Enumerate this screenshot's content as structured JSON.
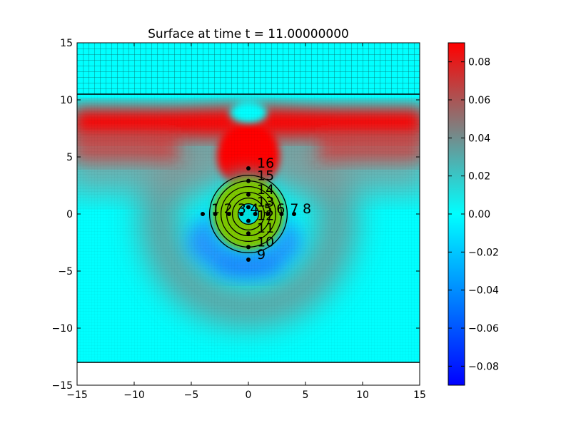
{
  "chart_data": {
    "type": "heatmap",
    "title": "Surface at time t =     11.00000000",
    "xlabel": "",
    "ylabel": "",
    "xlim": [
      -15,
      15
    ],
    "ylim": [
      -15,
      15
    ],
    "xticks": [
      "−15",
      "−10",
      "−5",
      "0",
      "5",
      "10",
      "15"
    ],
    "yticks": [
      "−15",
      "−10",
      "−5",
      "0",
      "5",
      "10",
      "15"
    ],
    "colorbar": {
      "range": [
        -0.09,
        0.09
      ],
      "ticks": [
        0.08,
        0.06,
        0.04,
        0.02,
        0.0,
        -0.02,
        -0.04,
        -0.06,
        -0.08
      ],
      "tick_labels": [
        "0.08",
        "0.06",
        "0.04",
        "0.02",
        "0.00",
        "−0.02",
        "−0.04",
        "−0.06",
        "−0.08"
      ],
      "colors": [
        "#0000ff",
        "#00ffff",
        "#ff0000"
      ]
    },
    "domain": {
      "y_top": 10.5,
      "y_bottom": -13
    },
    "coarse_region": {
      "y_from": 10.5,
      "y_to": 15
    },
    "gauges": [
      {
        "id": "1",
        "x": -4.0,
        "y": 0.0
      },
      {
        "id": "2",
        "x": -2.9,
        "y": 0.0
      },
      {
        "id": "3",
        "x": -1.7,
        "y": 0.0
      },
      {
        "id": "4",
        "x": -0.6,
        "y": 0.0
      },
      {
        "id": "5",
        "x": 0.6,
        "y": 0.0
      },
      {
        "id": "6",
        "x": 1.7,
        "y": 0.0
      },
      {
        "id": "7",
        "x": 2.9,
        "y": 0.0
      },
      {
        "id": "8",
        "x": 4.0,
        "y": 0.0
      },
      {
        "id": "9",
        "x": 0.0,
        "y": -4.0
      },
      {
        "id": "10",
        "x": 0.0,
        "y": -2.9
      },
      {
        "id": "11",
        "x": 0.0,
        "y": -1.7
      },
      {
        "id": "12",
        "x": 0.0,
        "y": -0.6
      },
      {
        "id": "13",
        "x": 0.0,
        "y": 0.6
      },
      {
        "id": "14",
        "x": 0.0,
        "y": 1.7
      },
      {
        "id": "15",
        "x": 0.0,
        "y": 2.9
      },
      {
        "id": "16",
        "x": 0.0,
        "y": 4.0
      }
    ],
    "contours": {
      "center": [
        0.0,
        0.0
      ],
      "radii": [
        0.9,
        1.4,
        1.9,
        2.4,
        2.9,
        3.4
      ],
      "fill_color": "#7ec800"
    }
  }
}
